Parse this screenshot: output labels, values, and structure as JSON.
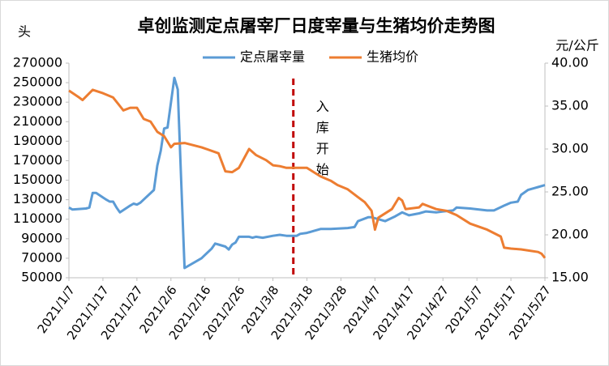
{
  "chart_data": {
    "type": "line",
    "title": "卓创监测定点屠宰厂日度宰量与生猪均价走势图",
    "y_unit": "头",
    "y2_unit": "元/公斤",
    "xlim": [
      "2021/1/7",
      "2021/5/27"
    ],
    "xticks": [
      "2021/1/7",
      "2021/1/17",
      "2021/1/27",
      "2021/2/6",
      "2021/2/16",
      "2021/2/26",
      "2021/3/8",
      "2021/3/18",
      "2021/3/28",
      "2021/4/7",
      "2021/4/17",
      "2021/4/27",
      "2021/5/7",
      "2021/5/17",
      "2021/5/27"
    ],
    "ylim": [
      50000,
      270000
    ],
    "yticks": [
      50000,
      70000,
      90000,
      110000,
      130000,
      150000,
      170000,
      190000,
      210000,
      230000,
      250000,
      270000
    ],
    "y2lim": [
      15,
      40
    ],
    "y2ticks": [
      {
        "value": 15,
        "label": "15.00"
      },
      {
        "value": 20,
        "label": "20.00"
      },
      {
        "value": 25,
        "label": "25.00"
      },
      {
        "value": 30,
        "label": "30.00"
      },
      {
        "value": 35,
        "label": "35.00"
      },
      {
        "value": 40,
        "label": "40.00"
      }
    ],
    "legend": "top",
    "annotation": {
      "text": "入库开始",
      "x": "2021/3/14",
      "color": "#c00000"
    },
    "series": [
      {
        "name": "定点屠宰量",
        "color": "#5b9bd5",
        "x": [
          "2021/1/7",
          "2021/1/8",
          "2021/1/12",
          "2021/1/13",
          "2021/1/14",
          "2021/1/15",
          "2021/1/18",
          "2021/1/19",
          "2021/1/20",
          "2021/1/21",
          "2021/1/22",
          "2021/1/25",
          "2021/1/26",
          "2021/1/27",
          "2021/1/28",
          "2021/2/1",
          "2021/2/2",
          "2021/2/3",
          "2021/2/4",
          "2021/2/5",
          "2021/2/7",
          "2021/2/8",
          "2021/2/9",
          "2021/2/10",
          "2021/2/15",
          "2021/2/18",
          "2021/2/19",
          "2021/2/20",
          "2021/2/22",
          "2021/2/23",
          "2021/2/24",
          "2021/2/25",
          "2021/2/26",
          "2021/3/1",
          "2021/3/2",
          "2021/3/3",
          "2021/3/5",
          "2021/3/8",
          "2021/3/10",
          "2021/3/12",
          "2021/3/15",
          "2021/3/16",
          "2021/3/18",
          "2021/3/20",
          "2021/3/22",
          "2021/3/25",
          "2021/3/30",
          "2021/4/1",
          "2021/4/2",
          "2021/4/5",
          "2021/4/6",
          "2021/4/8",
          "2021/4/10",
          "2021/4/13",
          "2021/4/15",
          "2021/4/17",
          "2021/4/20",
          "2021/4/22",
          "2021/4/25",
          "2021/4/27",
          "2021/4/30",
          "2021/5/1",
          "2021/5/5",
          "2021/5/10",
          "2021/5/12",
          "2021/5/15",
          "2021/5/17",
          "2021/5/19",
          "2021/5/20",
          "2021/5/22",
          "2021/5/24",
          "2021/5/25",
          "2021/5/27"
        ],
        "values": [
          122000,
          120000,
          121000,
          122000,
          137000,
          137000,
          130000,
          128000,
          128000,
          122000,
          117000,
          124000,
          126000,
          125000,
          127000,
          140000,
          165000,
          180000,
          203000,
          204000,
          255000,
          243000,
          150000,
          60000,
          70000,
          80000,
          85000,
          84000,
          82000,
          79000,
          84000,
          86000,
          92000,
          92000,
          91000,
          92000,
          91000,
          93000,
          94000,
          93000,
          93000,
          95000,
          96000,
          98000,
          100000,
          100000,
          101000,
          102000,
          108000,
          112000,
          112000,
          110000,
          108000,
          113000,
          117000,
          114000,
          116000,
          118000,
          117000,
          118000,
          119000,
          122000,
          121000,
          119000,
          119000,
          124000,
          127000,
          128000,
          135000,
          140000,
          142000,
          143000,
          145000
        ]
      },
      {
        "name": "生猪均价",
        "color": "#ed7d31",
        "axis": "y2",
        "x": [
          "2021/1/7",
          "2021/1/10",
          "2021/1/11",
          "2021/1/13",
          "2021/1/14",
          "2021/1/17",
          "2021/1/20",
          "2021/1/22",
          "2021/1/23",
          "2021/1/25",
          "2021/1/27",
          "2021/1/29",
          "2021/1/31",
          "2021/2/2",
          "2021/2/4",
          "2021/2/6",
          "2021/2/7",
          "2021/2/10",
          "2021/2/15",
          "2021/2/20",
          "2021/2/22",
          "2021/2/24",
          "2021/2/26",
          "2021/3/1",
          "2021/3/3",
          "2021/3/6",
          "2021/3/8",
          "2021/3/10",
          "2021/3/12",
          "2021/3/18",
          "2021/3/20",
          "2021/3/22",
          "2021/3/25",
          "2021/3/27",
          "2021/3/30",
          "2021/4/2",
          "2021/4/4",
          "2021/4/6",
          "2021/4/7",
          "2021/4/8",
          "2021/4/12",
          "2021/4/14",
          "2021/4/15",
          "2021/4/16",
          "2021/4/20",
          "2021/4/21",
          "2021/4/25",
          "2021/4/28",
          "2021/5/1",
          "2021/5/5",
          "2021/5/10",
          "2021/5/14",
          "2021/5/15",
          "2021/5/17",
          "2021/5/20",
          "2021/5/25",
          "2021/5/26",
          "2021/5/27"
        ],
        "values": [
          36.8,
          36.0,
          35.7,
          36.5,
          36.9,
          36.5,
          36.0,
          35.0,
          34.5,
          34.8,
          34.8,
          33.5,
          33.2,
          32.0,
          31.5,
          30.2,
          30.6,
          30.7,
          30.2,
          29.5,
          27.4,
          27.3,
          27.8,
          30.0,
          29.3,
          28.7,
          28.1,
          28.0,
          27.8,
          27.8,
          27.3,
          26.8,
          26.3,
          25.8,
          25.3,
          24.4,
          23.8,
          22.8,
          20.6,
          22.0,
          23.0,
          24.3,
          24.0,
          23.0,
          23.2,
          23.6,
          23.0,
          22.8,
          22.3,
          21.3,
          20.6,
          19.8,
          18.5,
          18.4,
          18.3,
          18.0,
          17.8,
          17.3
        ]
      }
    ]
  }
}
